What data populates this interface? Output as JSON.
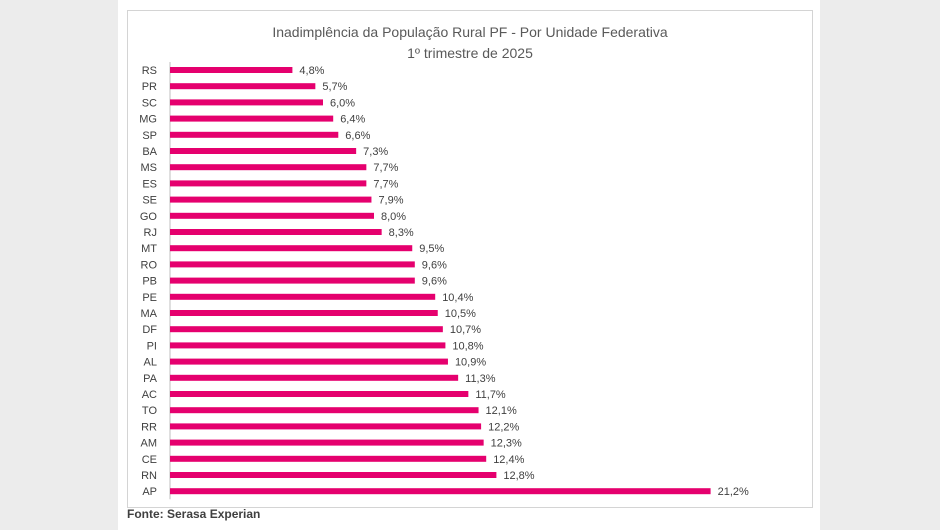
{
  "chart_data": {
    "type": "bar",
    "orientation": "horizontal",
    "title": "Inadimplência da População Rural PF - Por Unidade Federativa",
    "subtitle": "1º trimestre de 2025",
    "categories": [
      "RS",
      "PR",
      "SC",
      "MG",
      "SP",
      "BA",
      "MS",
      "ES",
      "SE",
      "GO",
      "RJ",
      "MT",
      "RO",
      "PB",
      "PE",
      "MA",
      "DF",
      "PI",
      "AL",
      "PA",
      "AC",
      "TO",
      "RR",
      "AM",
      "CE",
      "RN",
      "AP"
    ],
    "values": [
      4.8,
      5.7,
      6.0,
      6.4,
      6.6,
      7.3,
      7.7,
      7.7,
      7.9,
      8.0,
      8.3,
      9.5,
      9.6,
      9.6,
      10.4,
      10.5,
      10.7,
      10.8,
      10.9,
      11.3,
      11.7,
      12.1,
      12.2,
      12.3,
      12.4,
      12.8,
      21.2
    ],
    "data_labels": [
      "4,8%",
      "5,7%",
      "6,0%",
      "6,4%",
      "6,6%",
      "7,3%",
      "7,7%",
      "7,7%",
      "7,9%",
      "8,0%",
      "8,3%",
      "9,5%",
      "9,6%",
      "9,6%",
      "10,4%",
      "10,5%",
      "10,7%",
      "10,8%",
      "10,9%",
      "11,3%",
      "11,7%",
      "12,1%",
      "12,2%",
      "12,3%",
      "12,4%",
      "12,8%",
      "21,2%"
    ],
    "bar_color": "#e5006e",
    "grid": false,
    "legend": "none"
  },
  "source": "Fonte: Serasa Experian"
}
